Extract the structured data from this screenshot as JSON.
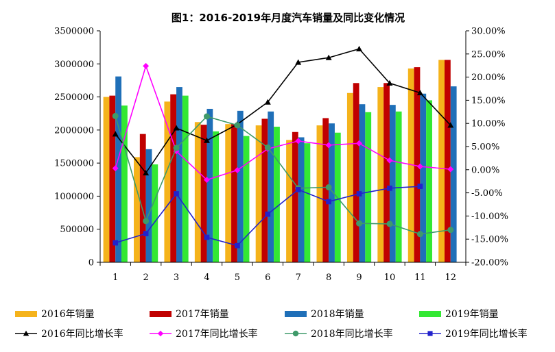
{
  "chart_data": {
    "type": "bar",
    "title": "图1：2016-2019年月度汽车销量及同比变化情况",
    "categories": [
      "1",
      "2",
      "3",
      "4",
      "5",
      "6",
      "7",
      "8",
      "9",
      "10",
      "11",
      "12"
    ],
    "y_left": {
      "ylim": [
        0,
        3500000
      ],
      "ticks": [
        "0",
        "500000",
        "1000000",
        "1500000",
        "2000000",
        "2500000",
        "3000000",
        "3500000"
      ]
    },
    "y_right": {
      "ylim": [
        -20,
        30
      ],
      "ticks": [
        "-20.00%",
        "-15.00%",
        "-10.00%",
        "-5.00%",
        "0.00%",
        "5.00%",
        "10.00%",
        "15.00%",
        "20.00%",
        "25.00%",
        "30.00%"
      ]
    },
    "bar_series": [
      {
        "name": "2016年销量",
        "color": "#F5B31B",
        "values": [
          2500000,
          1590000,
          2430000,
          2120000,
          2090000,
          2070000,
          1850000,
          2070000,
          2560000,
          2650000,
          2930000,
          3060000
        ]
      },
      {
        "name": "2017年销量",
        "color": "#C00000",
        "values": [
          2520000,
          1940000,
          2540000,
          2080000,
          2090000,
          2170000,
          1970000,
          2180000,
          2710000,
          2710000,
          2950000,
          3060000
        ]
      },
      {
        "name": "2018年销量",
        "color": "#1F6FB8",
        "values": [
          2810000,
          1710000,
          2650000,
          2320000,
          2290000,
          2280000,
          1890000,
          2100000,
          2390000,
          2380000,
          2550000,
          2660000
        ]
      },
      {
        "name": "2019年销量",
        "color": "#33E833",
        "values": [
          2370000,
          1480000,
          2520000,
          1980000,
          1910000,
          2050000,
          1800000,
          1960000,
          2270000,
          2280000,
          2450000,
          null
        ]
      }
    ],
    "line_series": [
      {
        "name": "2016年同比增长率",
        "color": "#000000",
        "marker": "triangle",
        "values": [
          7.7,
          -0.7,
          9.0,
          6.3,
          9.8,
          14.6,
          23.2,
          24.2,
          26.1,
          18.7,
          16.6,
          9.6
        ]
      },
      {
        "name": "2017年同比增长率",
        "color": "#FF00FF",
        "marker": "diamond",
        "values": [
          0.3,
          22.4,
          4.0,
          -2.2,
          -0.1,
          4.5,
          6.2,
          5.3,
          5.7,
          2.0,
          0.7,
          0.1
        ]
      },
      {
        "name": "2018年同比增长率",
        "color": "#3F9A6A",
        "marker": "circle",
        "values": [
          11.6,
          -11.1,
          4.7,
          11.5,
          9.6,
          4.8,
          -4.0,
          -3.8,
          -11.6,
          -11.7,
          -13.9,
          -13.0
        ]
      },
      {
        "name": "2019年同比增长率",
        "color": "#2222CC",
        "marker": "square",
        "values": [
          -15.8,
          -13.8,
          -5.2,
          -14.6,
          -16.4,
          -9.6,
          -4.3,
          -6.9,
          -5.2,
          -4.0,
          -3.6,
          null
        ]
      }
    ],
    "legend_position": "bottom",
    "grid": false
  }
}
